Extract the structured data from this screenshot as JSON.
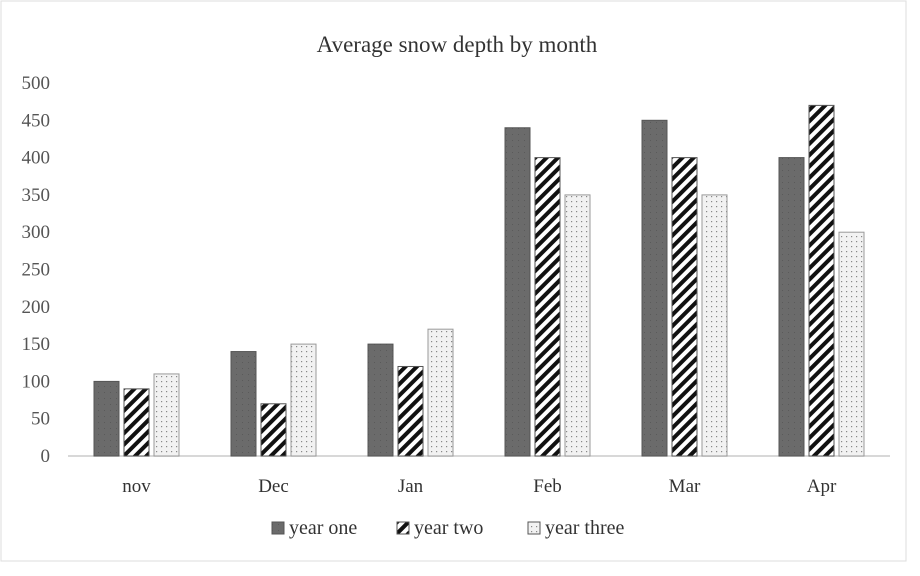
{
  "chart_data": {
    "type": "bar",
    "title": "Average snow depth by month",
    "xlabel": "",
    "ylabel": "",
    "categories": [
      "nov",
      "Dec",
      "Jan",
      "Feb",
      "Mar",
      "Apr"
    ],
    "series": [
      {
        "name": "year one",
        "values": [
          100,
          140,
          150,
          440,
          450,
          400
        ],
        "pattern": "solid-dark-gray"
      },
      {
        "name": "year two",
        "values": [
          90,
          70,
          120,
          400,
          400,
          470
        ],
        "pattern": "diagonal-stripes"
      },
      {
        "name": "year three",
        "values": [
          110,
          150,
          170,
          350,
          350,
          300
        ],
        "pattern": "dotted-light"
      }
    ],
    "ylim": [
      0,
      500
    ],
    "yticks": [
      0,
      50,
      100,
      150,
      200,
      250,
      300,
      350,
      400,
      450,
      500
    ],
    "grid": false,
    "legend_position": "bottom",
    "colors": {
      "year one": "#6b6b6b",
      "year two": "#111111",
      "year three": "#e6e6e6"
    }
  }
}
